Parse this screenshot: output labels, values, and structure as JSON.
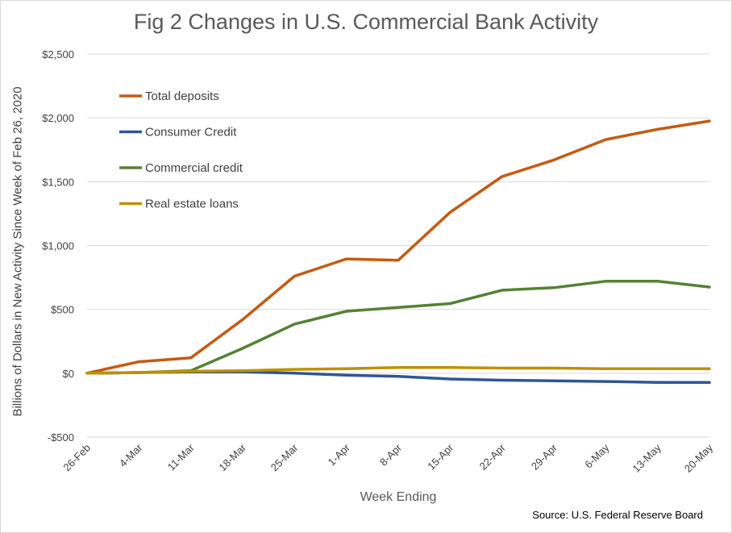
{
  "chart_data": {
    "type": "line",
    "title": "Fig 2 Changes in U.S. Commercial Bank Activity",
    "xlabel": "Week Ending",
    "ylabel": "Billions of Dollars in New Activity Since Week of Feb 26, 2020",
    "source": "Source: U.S. Federal Reserve Board",
    "categories": [
      "26-Feb",
      "4-Mar",
      "11-Mar",
      "18-Mar",
      "25-Mar",
      "1-Apr",
      "8-Apr",
      "15-Apr",
      "22-Apr",
      "29-Apr",
      "6-May",
      "13-May",
      "20-May"
    ],
    "ylim": [
      -500,
      2500
    ],
    "yticks": [
      {
        "value": 2500,
        "label": "$2,500"
      },
      {
        "value": 2000,
        "label": "$2,000"
      },
      {
        "value": 1500,
        "label": "$1,500"
      },
      {
        "value": 1000,
        "label": "$1,000"
      },
      {
        "value": 500,
        "label": "$500"
      },
      {
        "value": 0,
        "label": "$0"
      },
      {
        "value": -500,
        "label": "-$500"
      }
    ],
    "grid": true,
    "legend_position": "top-left",
    "series": [
      {
        "name": "Total deposits",
        "color": "#c55a11",
        "values": [
          0,
          90,
          120,
          420,
          760,
          895,
          885,
          1260,
          1540,
          1670,
          1830,
          1910,
          1975
        ]
      },
      {
        "name": "Consumer Credit",
        "color": "#2f5597",
        "values": [
          0,
          5,
          10,
          10,
          0,
          -15,
          -25,
          -45,
          -55,
          -60,
          -65,
          -72,
          -72
        ]
      },
      {
        "name": "Commercial credit",
        "color": "#548235",
        "values": [
          0,
          5,
          20,
          195,
          385,
          485,
          515,
          545,
          650,
          670,
          720,
          720,
          675
        ]
      },
      {
        "name": "Real estate loans",
        "color": "#bf9000",
        "values": [
          0,
          5,
          15,
          20,
          30,
          35,
          45,
          45,
          40,
          40,
          35,
          35,
          35
        ]
      }
    ]
  }
}
